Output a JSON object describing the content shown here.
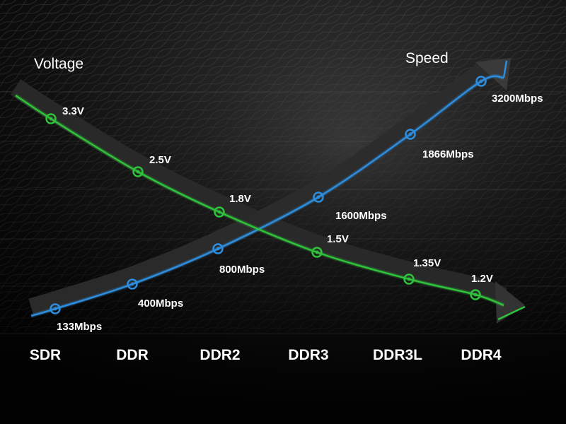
{
  "chart_data": {
    "type": "line",
    "categories": [
      "SDR",
      "DDR",
      "DDR2",
      "DDR3",
      "DDR3L",
      "DDR4"
    ],
    "series": [
      {
        "name": "Voltage",
        "color": "#2fc23a",
        "points": [
          {
            "x": "SDR",
            "y": 3.3,
            "label": "3.3V"
          },
          {
            "x": "DDR",
            "y": 2.5,
            "label": "2.5V"
          },
          {
            "x": "DDR2",
            "y": 1.8,
            "label": "1.8V"
          },
          {
            "x": "DDR3",
            "y": 1.5,
            "label": "1.5V"
          },
          {
            "x": "DDR3L",
            "y": 1.35,
            "label": "1.35V"
          },
          {
            "x": "DDR4",
            "y": 1.2,
            "label": "1.2V"
          }
        ]
      },
      {
        "name": "Speed",
        "color": "#2d8ee0",
        "points": [
          {
            "x": "SDR",
            "y": 133,
            "label": "133Mbps"
          },
          {
            "x": "DDR",
            "y": 400,
            "label": "400Mbps"
          },
          {
            "x": "DDR2",
            "y": 800,
            "label": "800Mbps"
          },
          {
            "x": "DDR3",
            "y": 1600,
            "label": "1600Mbps"
          },
          {
            "x": "DDR3L",
            "y": 1866,
            "label": "1866Mbps"
          },
          {
            "x": "DDR4",
            "y": 3200,
            "label": "3200Mbps"
          }
        ]
      }
    ],
    "title": "",
    "xlabel": "",
    "ylabel": "",
    "grid": true,
    "legend": "none"
  }
}
